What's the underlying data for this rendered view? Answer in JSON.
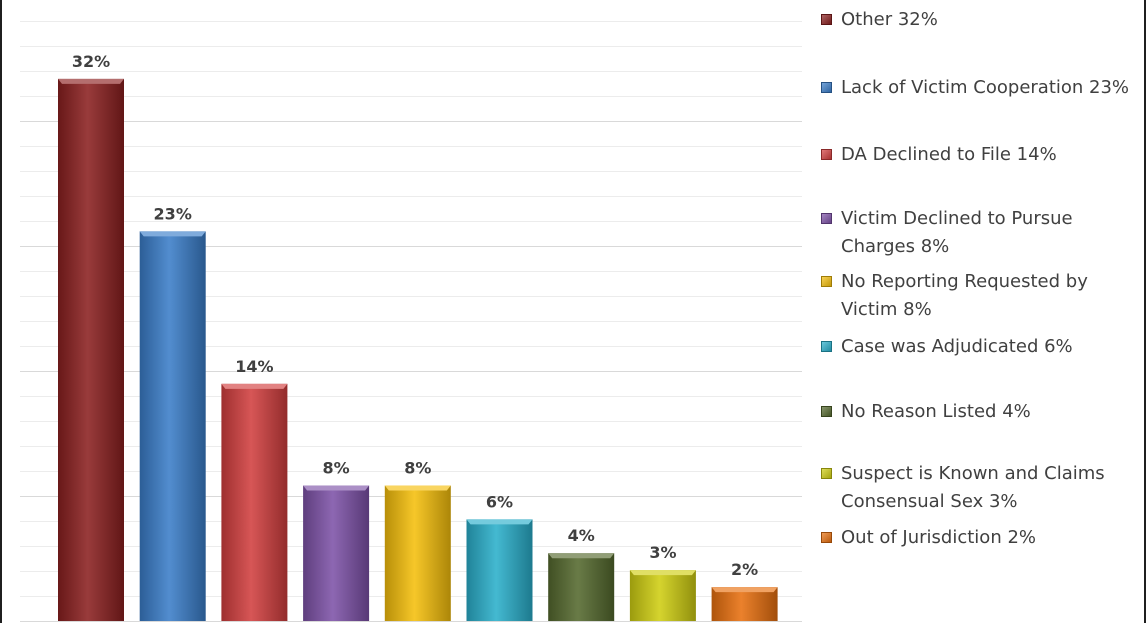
{
  "chart_data": {
    "type": "bar",
    "categories": [
      "Other",
      "Lack of Victim Cooperation",
      "DA Declined to File",
      "Victim Declined to Pursue Charges",
      "No Reporting Requested by Victim",
      "Case was Adjudicated",
      "No Reason Listed",
      "Suspect is Known and Claims Consensual Sex",
      "Out of Jurisdiction"
    ],
    "values": [
      32,
      23,
      14,
      8,
      8,
      6,
      4,
      3,
      2
    ],
    "value_unit": "%",
    "data_labels": [
      "32%",
      "23%",
      "14%",
      "8%",
      "8%",
      "6%",
      "4%",
      "3%",
      "2%"
    ],
    "colors": [
      "#8B2020",
      "#3A7DC9",
      "#D23F3F",
      "#7E52A8",
      "#F5BF0C",
      "#2AAFCB",
      "#55692E",
      "#CFCE12",
      "#E8700F"
    ],
    "legend_labels": [
      "Other 32%",
      "Lack of Victim Cooperation 23%",
      "DA Declined to File 14%",
      "Victim Declined to Pursue Charges 8%",
      "No Reporting Requested by Victim 8%",
      "Case was Adjudicated 6%",
      "No Reason Listed 4%",
      "Suspect is Known and Claims Consensual Sex 3%",
      "Out of Jurisdiction 2%"
    ],
    "legend_placement": "right",
    "grid": true,
    "ylim": [
      0,
      34
    ],
    "title": "",
    "xlabel": "",
    "ylabel": ""
  }
}
